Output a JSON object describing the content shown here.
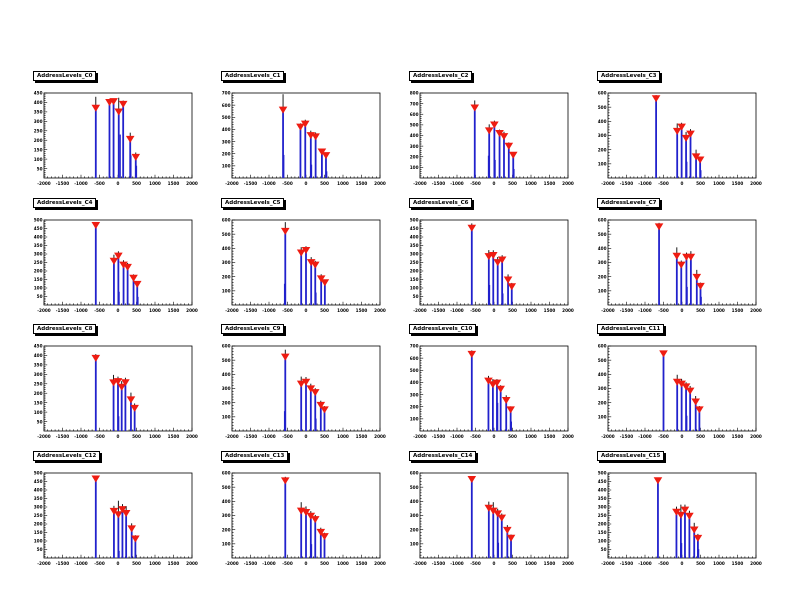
{
  "window": {
    "background": "#ffffff",
    "description": "ROOT canvas with 4x4 grid of address-level calibration histograms"
  },
  "colors": {
    "spike": "#2121cc",
    "marker": "#ee1c12",
    "error_bar": "#000000",
    "frame_border": "#000000",
    "frame_fill": "#ffffff",
    "title_bg": "#ffffff",
    "title_border": "#000000"
  },
  "axes_common": {
    "xlim": [
      -2000,
      2000
    ],
    "xtick_step": 500,
    "xtick_minor_step": 100,
    "xtick_labels": [
      "-2000",
      "-1500",
      "-1000",
      "-500",
      "0",
      "500",
      "1000",
      "1500",
      "2000"
    ],
    "grid": false,
    "legend": "none"
  },
  "chart_data": [
    {
      "id": "C0",
      "title": "AddressLevels_C0",
      "type": "bar",
      "style": "stem-with-triangle-markers",
      "xlim": [
        -2000,
        2000
      ],
      "ylim": [
        0,
        450
      ],
      "ytick_step": 50,
      "points": [
        {
          "x": -600,
          "y": 370,
          "err": 60
        },
        {
          "x": -230,
          "y": 400,
          "err": 15
        },
        {
          "x": -120,
          "y": 405,
          "err": 15
        },
        {
          "x": 20,
          "y": 350,
          "err": 75
        },
        {
          "x": 140,
          "y": 390,
          "err": 20
        },
        {
          "x": 330,
          "y": 205,
          "err": 35
        },
        {
          "x": 480,
          "y": 110,
          "err": 25
        }
      ],
      "minor_spikes": [
        {
          "x": 60,
          "y": 230
        },
        {
          "x": 350,
          "y": 120
        },
        {
          "x": 500,
          "y": 65
        }
      ]
    },
    {
      "id": "C1",
      "title": "AddressLevels_C1",
      "type": "bar",
      "style": "stem-with-triangle-markers",
      "xlim": [
        -2000,
        2000
      ],
      "ylim": [
        0,
        700
      ],
      "ytick_step": 100,
      "points": [
        {
          "x": -620,
          "y": 560,
          "err": 130
        },
        {
          "x": -150,
          "y": 420,
          "err": 30
        },
        {
          "x": -20,
          "y": 445,
          "err": 35
        },
        {
          "x": 130,
          "y": 350,
          "err": 40
        },
        {
          "x": 260,
          "y": 340,
          "err": 35
        },
        {
          "x": 430,
          "y": 215,
          "err": 25
        },
        {
          "x": 540,
          "y": 185,
          "err": 20
        }
      ],
      "minor_spikes": [
        {
          "x": -600,
          "y": 190
        },
        {
          "x": 150,
          "y": 110
        },
        {
          "x": 560,
          "y": 55
        }
      ]
    },
    {
      "id": "C2",
      "title": "AddressLevels_C2",
      "type": "bar",
      "style": "stem-with-triangle-markers",
      "xlim": [
        -2000,
        2000
      ],
      "ylim": [
        0,
        800
      ],
      "ytick_step": 100,
      "points": [
        {
          "x": -520,
          "y": 660,
          "err": 70
        },
        {
          "x": -130,
          "y": 445,
          "err": 60
        },
        {
          "x": 10,
          "y": 500,
          "err": 40
        },
        {
          "x": 150,
          "y": 420,
          "err": 35
        },
        {
          "x": 270,
          "y": 390,
          "err": 45
        },
        {
          "x": 400,
          "y": 300,
          "err": 35
        },
        {
          "x": 520,
          "y": 215,
          "err": 25
        }
      ],
      "minor_spikes": [
        {
          "x": -150,
          "y": 210
        },
        {
          "x": 30,
          "y": 170
        },
        {
          "x": 540,
          "y": 85
        }
      ]
    },
    {
      "id": "C3",
      "title": "AddressLevels_C3",
      "type": "bar",
      "style": "stem-with-triangle-markers",
      "xlim": [
        -2000,
        2000
      ],
      "ylim": [
        0,
        600
      ],
      "ytick_step": 100,
      "points": [
        {
          "x": -700,
          "y": 560,
          "err": 25
        },
        {
          "x": -130,
          "y": 330,
          "err": 55
        },
        {
          "x": -10,
          "y": 360,
          "err": 30
        },
        {
          "x": 110,
          "y": 280,
          "err": 45
        },
        {
          "x": 230,
          "y": 310,
          "err": 35
        },
        {
          "x": 380,
          "y": 150,
          "err": 50
        },
        {
          "x": 490,
          "y": 128,
          "err": 22
        }
      ],
      "minor_spikes": [
        {
          "x": 130,
          "y": 115
        },
        {
          "x": 510,
          "y": 55
        }
      ]
    },
    {
      "id": "C4",
      "title": "AddressLevels_C4",
      "type": "bar",
      "style": "stem-with-triangle-markers",
      "xlim": [
        -2000,
        2000
      ],
      "ylim": [
        0,
        500
      ],
      "ytick_step": 50,
      "points": [
        {
          "x": -600,
          "y": 468,
          "err": 18
        },
        {
          "x": -110,
          "y": 258,
          "err": 38
        },
        {
          "x": 10,
          "y": 288,
          "err": 28
        },
        {
          "x": 150,
          "y": 235,
          "err": 28
        },
        {
          "x": 260,
          "y": 222,
          "err": 25
        },
        {
          "x": 420,
          "y": 158,
          "err": 22
        },
        {
          "x": 520,
          "y": 122,
          "err": 18
        }
      ],
      "minor_spikes": [
        {
          "x": 30,
          "y": 78
        },
        {
          "x": 540,
          "y": 48
        }
      ]
    },
    {
      "id": "C5",
      "title": "AddressLevels_C5",
      "type": "bar",
      "style": "stem-with-triangle-markers",
      "xlim": [
        -2000,
        2000
      ],
      "ylim": [
        0,
        600
      ],
      "ytick_step": 100,
      "points": [
        {
          "x": -560,
          "y": 520,
          "err": 65
        },
        {
          "x": -130,
          "y": 368,
          "err": 40
        },
        {
          "x": 0,
          "y": 385,
          "err": 30
        },
        {
          "x": 140,
          "y": 300,
          "err": 38
        },
        {
          "x": 250,
          "y": 282,
          "err": 30
        },
        {
          "x": 410,
          "y": 185,
          "err": 32
        },
        {
          "x": 510,
          "y": 158,
          "err": 22
        }
      ],
      "minor_spikes": [
        {
          "x": -580,
          "y": 150
        },
        {
          "x": 270,
          "y": 88
        }
      ]
    },
    {
      "id": "C6",
      "title": "AddressLevels_C6",
      "type": "bar",
      "style": "stem-with-triangle-markers",
      "xlim": [
        -2000,
        2000
      ],
      "ylim": [
        0,
        500
      ],
      "ytick_step": 50,
      "points": [
        {
          "x": -600,
          "y": 452,
          "err": 28
        },
        {
          "x": -140,
          "y": 285,
          "err": 38
        },
        {
          "x": -20,
          "y": 292,
          "err": 30
        },
        {
          "x": 100,
          "y": 250,
          "err": 32
        },
        {
          "x": 220,
          "y": 265,
          "err": 28
        },
        {
          "x": 380,
          "y": 148,
          "err": 32
        },
        {
          "x": 480,
          "y": 108,
          "err": 22
        }
      ],
      "minor_spikes": [
        {
          "x": -120,
          "y": 118
        },
        {
          "x": 240,
          "y": 68
        }
      ]
    },
    {
      "id": "C7",
      "title": "AddressLevels_C7",
      "type": "bar",
      "style": "stem-with-triangle-markers",
      "xlim": [
        -2000,
        2000
      ],
      "ylim": [
        0,
        600
      ],
      "ytick_step": 100,
      "points": [
        {
          "x": -620,
          "y": 552,
          "err": 28
        },
        {
          "x": -140,
          "y": 345,
          "err": 62
        },
        {
          "x": -20,
          "y": 282,
          "err": 32
        },
        {
          "x": 120,
          "y": 338,
          "err": 32
        },
        {
          "x": 240,
          "y": 338,
          "err": 42
        },
        {
          "x": 400,
          "y": 196,
          "err": 52
        },
        {
          "x": 500,
          "y": 132,
          "err": 26
        }
      ],
      "minor_spikes": [
        {
          "x": 140,
          "y": 128
        },
        {
          "x": 520,
          "y": 58
        }
      ]
    },
    {
      "id": "C8",
      "title": "AddressLevels_C8",
      "type": "bar",
      "style": "stem-with-triangle-markers",
      "xlim": [
        -2000,
        2000
      ],
      "ylim": [
        0,
        450
      ],
      "ytick_step": 50,
      "points": [
        {
          "x": -600,
          "y": 385,
          "err": 22
        },
        {
          "x": -120,
          "y": 255,
          "err": 42
        },
        {
          "x": 0,
          "y": 262,
          "err": 26
        },
        {
          "x": 100,
          "y": 232,
          "err": 32
        },
        {
          "x": 200,
          "y": 256,
          "err": 26
        },
        {
          "x": 350,
          "y": 165,
          "err": 38
        },
        {
          "x": 450,
          "y": 120,
          "err": 26
        }
      ],
      "minor_spikes": [
        {
          "x": 20,
          "y": 78
        }
      ]
    },
    {
      "id": "C9",
      "title": "AddressLevels_C9",
      "type": "bar",
      "style": "stem-with-triangle-markers",
      "xlim": [
        -2000,
        2000
      ],
      "ylim": [
        0,
        600
      ],
      "ytick_step": 100,
      "points": [
        {
          "x": -560,
          "y": 522,
          "err": 52
        },
        {
          "x": -130,
          "y": 332,
          "err": 52
        },
        {
          "x": 0,
          "y": 345,
          "err": 36
        },
        {
          "x": 130,
          "y": 298,
          "err": 36
        },
        {
          "x": 250,
          "y": 272,
          "err": 30
        },
        {
          "x": 400,
          "y": 182,
          "err": 32
        },
        {
          "x": 500,
          "y": 150,
          "err": 26
        }
      ],
      "minor_spikes": [
        {
          "x": -580,
          "y": 140
        },
        {
          "x": 270,
          "y": 88
        }
      ]
    },
    {
      "id": "C10",
      "title": "AddressLevels_C10",
      "type": "bar",
      "style": "stem-with-triangle-markers",
      "xlim": [
        -2000,
        2000
      ],
      "ylim": [
        0,
        700
      ],
      "ytick_step": 100,
      "points": [
        {
          "x": -600,
          "y": 632,
          "err": 32
        },
        {
          "x": -150,
          "y": 412,
          "err": 42
        },
        {
          "x": -30,
          "y": 382,
          "err": 46
        },
        {
          "x": 80,
          "y": 395,
          "err": 32
        },
        {
          "x": 180,
          "y": 345,
          "err": 32
        },
        {
          "x": 330,
          "y": 252,
          "err": 42
        },
        {
          "x": 450,
          "y": 175,
          "err": 28
        }
      ],
      "minor_spikes": [
        {
          "x": 100,
          "y": 232
        },
        {
          "x": 470,
          "y": 78
        }
      ]
    },
    {
      "id": "C11",
      "title": "AddressLevels_C11",
      "type": "bar",
      "style": "stem-with-triangle-markers",
      "xlim": [
        -2000,
        2000
      ],
      "ylim": [
        0,
        600
      ],
      "ytick_step": 100,
      "points": [
        {
          "x": -500,
          "y": 545,
          "err": 22
        },
        {
          "x": -130,
          "y": 345,
          "err": 52
        },
        {
          "x": -10,
          "y": 332,
          "err": 36
        },
        {
          "x": 110,
          "y": 312,
          "err": 32
        },
        {
          "x": 220,
          "y": 282,
          "err": 36
        },
        {
          "x": 370,
          "y": 205,
          "err": 42
        },
        {
          "x": 470,
          "y": 150,
          "err": 26
        }
      ],
      "minor_spikes": [
        {
          "x": 130,
          "y": 108
        }
      ]
    },
    {
      "id": "C12",
      "title": "AddressLevels_C12",
      "type": "bar",
      "style": "stem-with-triangle-markers",
      "xlim": [
        -2000,
        2000
      ],
      "ylim": [
        0,
        500
      ],
      "ytick_step": 50,
      "points": [
        {
          "x": -600,
          "y": 465,
          "err": 20
        },
        {
          "x": -110,
          "y": 275,
          "err": 32
        },
        {
          "x": 10,
          "y": 255,
          "err": 82
        },
        {
          "x": 120,
          "y": 285,
          "err": 32
        },
        {
          "x": 220,
          "y": 262,
          "err": 42
        },
        {
          "x": 370,
          "y": 172,
          "err": 32
        },
        {
          "x": 470,
          "y": 112,
          "err": 22
        }
      ],
      "minor_spikes": [
        {
          "x": 30,
          "y": 42
        }
      ]
    },
    {
      "id": "C13",
      "title": "AddressLevels_C13",
      "type": "bar",
      "style": "stem-with-triangle-markers",
      "xlim": [
        -2000,
        2000
      ],
      "ylim": [
        0,
        600
      ],
      "ytick_step": 100,
      "points": [
        {
          "x": -560,
          "y": 545,
          "err": 28
        },
        {
          "x": -130,
          "y": 332,
          "err": 62
        },
        {
          "x": 0,
          "y": 322,
          "err": 42
        },
        {
          "x": 130,
          "y": 295,
          "err": 36
        },
        {
          "x": 250,
          "y": 272,
          "err": 32
        },
        {
          "x": 400,
          "y": 182,
          "err": 32
        },
        {
          "x": 500,
          "y": 152,
          "err": 26
        }
      ],
      "minor_spikes": [
        {
          "x": 150,
          "y": 98
        }
      ]
    },
    {
      "id": "C14",
      "title": "AddressLevels_C14",
      "type": "bar",
      "style": "stem-with-triangle-markers",
      "xlim": [
        -2000,
        2000
      ],
      "ylim": [
        0,
        600
      ],
      "ytick_step": 100,
      "points": [
        {
          "x": -600,
          "y": 555,
          "err": 22
        },
        {
          "x": -140,
          "y": 352,
          "err": 46
        },
        {
          "x": -20,
          "y": 332,
          "err": 62
        },
        {
          "x": 100,
          "y": 312,
          "err": 36
        },
        {
          "x": 210,
          "y": 282,
          "err": 32
        },
        {
          "x": 360,
          "y": 196,
          "err": 36
        },
        {
          "x": 460,
          "y": 140,
          "err": 26
        }
      ],
      "minor_spikes": [
        {
          "x": 120,
          "y": 108
        }
      ]
    },
    {
      "id": "C15",
      "title": "AddressLevels_C15",
      "type": "bar",
      "style": "stem-with-triangle-markers",
      "xlim": [
        -2000,
        2000
      ],
      "ylim": [
        0,
        500
      ],
      "ytick_step": 50,
      "points": [
        {
          "x": -650,
          "y": 455,
          "err": 16
        },
        {
          "x": -150,
          "y": 270,
          "err": 32
        },
        {
          "x": -30,
          "y": 252,
          "err": 62
        },
        {
          "x": 80,
          "y": 282,
          "err": 32
        },
        {
          "x": 200,
          "y": 246,
          "err": 32
        },
        {
          "x": 330,
          "y": 165,
          "err": 42
        },
        {
          "x": 430,
          "y": 116,
          "err": 26
        }
      ],
      "minor_spikes": [
        {
          "x": -10,
          "y": 88
        },
        {
          "x": 450,
          "y": 52
        }
      ]
    }
  ]
}
